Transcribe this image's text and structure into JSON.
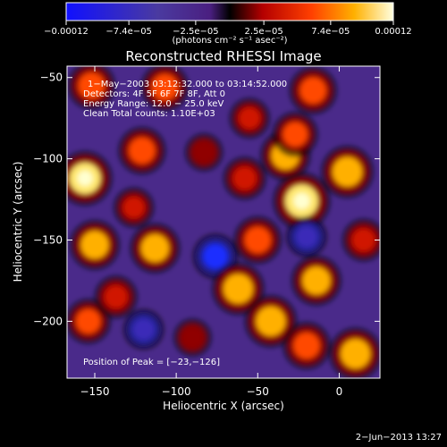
{
  "chart_data": {
    "type": "heatmap",
    "title": "Reconstructed RHESSI Image",
    "xlabel": "Heliocentric X (arcsec)",
    "ylabel": "Heliocentric Y (arcsec)",
    "xlim": [
      -167,
      25
    ],
    "ylim": [
      -235,
      -43
    ],
    "x_ticks": [
      -150,
      -100,
      -50,
      0
    ],
    "x_tick_labels": [
      "−150",
      "−100",
      "−50",
      "0"
    ],
    "y_ticks": [
      -200,
      -150,
      -100,
      -50
    ],
    "y_tick_labels": [
      "−200",
      "−150",
      "−100",
      "−50"
    ],
    "colorbar": {
      "min": -0.00012,
      "max": 0.00012,
      "ticks": [
        -0.00012,
        -7.4e-05,
        -2.5e-05,
        2.5e-05,
        7.4e-05,
        0.00012
      ],
      "tick_labels": [
        "−0.00012",
        "−7.4e−05",
        "−2.5e−05",
        "2.5e−05",
        "7.4e−05",
        "0.00012"
      ],
      "unit_label": "(photons cm⁻² s⁻¹ asec⁻²)"
    },
    "annotations": [
      "1−May−2003 03:12:32.000 to 03:14:52.000",
      "Detectors: 4F 5F 6F 7F 8F, Att 0",
      "Energy Range: 12.0 − 25.0 keV",
      "Clean     Total counts: 1.10E+03"
    ],
    "peak_label": "Position of Peak = [−23,−126]",
    "peak_position": [
      -23,
      -126
    ],
    "footer_date": "2−Jun−2013 13:27",
    "blobs": [
      {
        "x": -156,
        "y": -112,
        "v": 0.00011
      },
      {
        "x": -150,
        "y": -153,
        "v": 9e-05
      },
      {
        "x": -152,
        "y": -55,
        "v": 8e-05
      },
      {
        "x": -154,
        "y": -200,
        "v": 7e-05
      },
      {
        "x": -137,
        "y": -185,
        "v": 6e-05
      },
      {
        "x": -126,
        "y": -130,
        "v": 5e-05
      },
      {
        "x": -121,
        "y": -95,
        "v": 8e-05
      },
      {
        "x": -113,
        "y": -155,
        "v": 9e-05
      },
      {
        "x": -107,
        "y": -56,
        "v": 8e-05
      },
      {
        "x": -83,
        "y": -96,
        "v": 4e-05
      },
      {
        "x": -76,
        "y": -160,
        "v": -7e-05
      },
      {
        "x": -62,
        "y": -180,
        "v": 0.0001
      },
      {
        "x": -58,
        "y": -112,
        "v": 6e-05
      },
      {
        "x": -50,
        "y": -150,
        "v": 8e-05
      },
      {
        "x": -42,
        "y": -200,
        "v": 0.0001
      },
      {
        "x": -33,
        "y": -98,
        "v": 9e-05
      },
      {
        "x": -23,
        "y": -126,
        "v": 0.00012
      },
      {
        "x": -27,
        "y": -85,
        "v": 7e-05
      },
      {
        "x": -16,
        "y": -58,
        "v": 8e-05
      },
      {
        "x": -14,
        "y": -175,
        "v": 9e-05
      },
      {
        "x": 5,
        "y": -108,
        "v": 0.0001
      },
      {
        "x": 15,
        "y": -150,
        "v": 6e-05
      },
      {
        "x": 10,
        "y": -220,
        "v": 0.0001
      },
      {
        "x": -20,
        "y": -215,
        "v": 8e-05
      },
      {
        "x": -120,
        "y": -205,
        "v": -5e-05
      },
      {
        "x": -90,
        "y": -210,
        "v": 4e-05
      },
      {
        "x": -20,
        "y": -148,
        "v": -5e-05
      },
      {
        "x": -55,
        "y": -75,
        "v": 5e-05
      }
    ]
  }
}
